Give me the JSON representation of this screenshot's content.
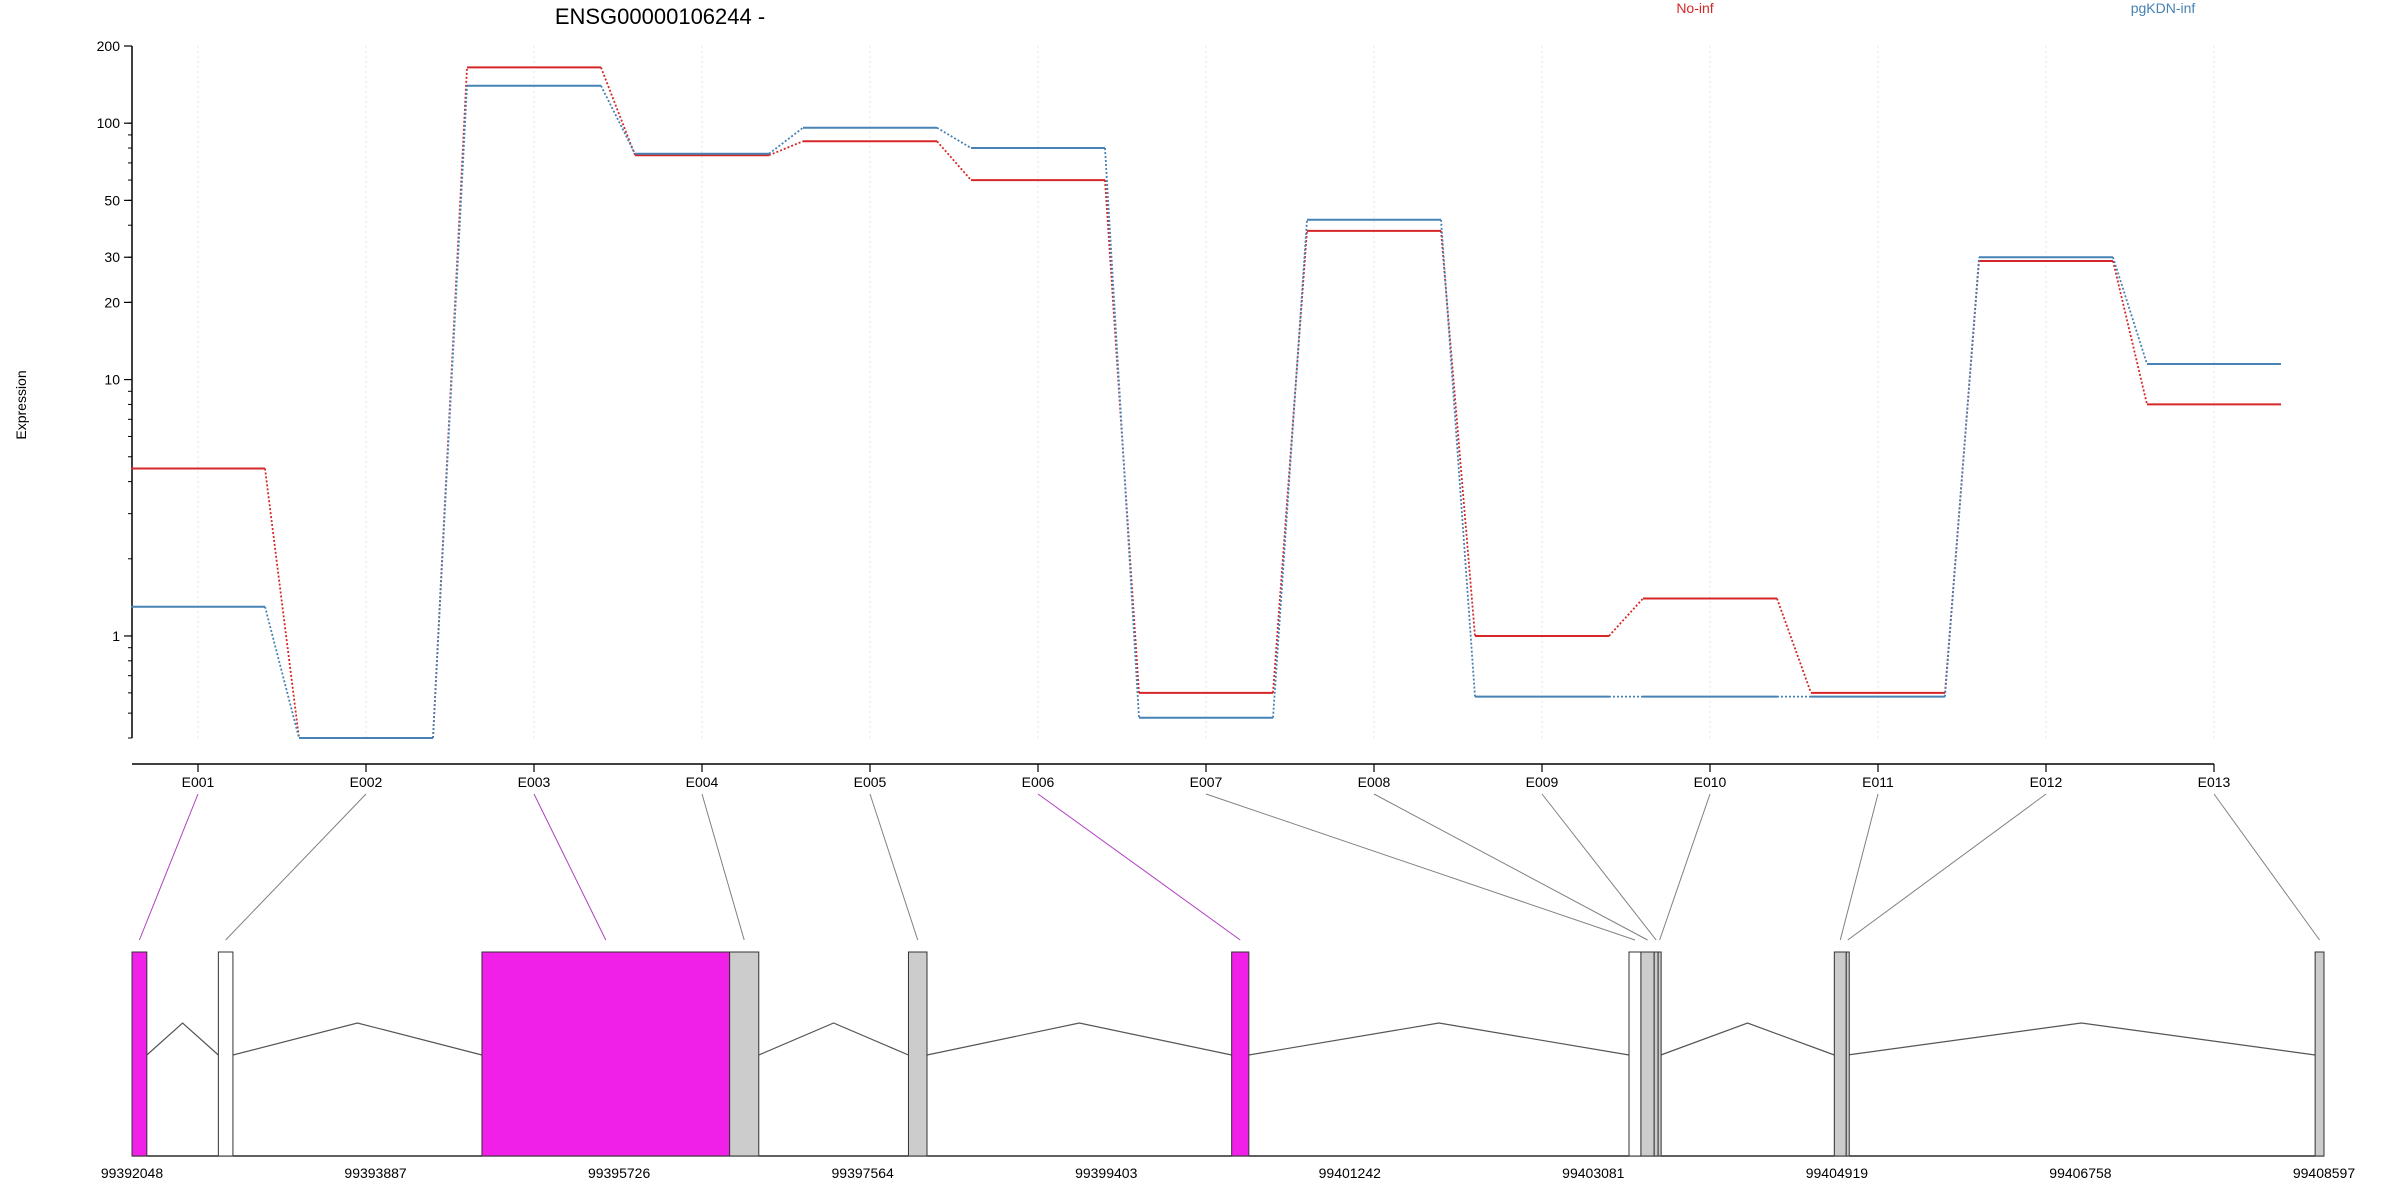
{
  "chart_data": {
    "type": "line",
    "title": "ENSG00000106244 -",
    "ylabel": "Expression",
    "xlabel": "",
    "y_scale": "log",
    "ylim": [
      0.4,
      200
    ],
    "y_ticks": [
      "200",
      "100",
      "50",
      "30",
      "20",
      "10",
      "1"
    ],
    "grid": "vertical dotted lines at exon bins",
    "legend_position": "top-right",
    "categories": [
      "E001",
      "E002",
      "E003",
      "E004",
      "E005",
      "E006",
      "E007",
      "E008",
      "E009",
      "E010",
      "E011",
      "E012",
      "E013"
    ],
    "series": [
      {
        "name": "No-inf",
        "color": "#d62728",
        "values": [
          4.5,
          0.4,
          165,
          75,
          85,
          60,
          0.6,
          38,
          1.0,
          1.4,
          0.6,
          29,
          8.0
        ]
      },
      {
        "name": "pgKDN-inf",
        "color": "#4682b4",
        "values": [
          1.3,
          0.4,
          140,
          76,
          96,
          80,
          0.48,
          42,
          0.58,
          0.58,
          0.58,
          30,
          11.5
        ]
      }
    ],
    "gene_model": {
      "coordinate_labels": [
        "99392048",
        "99393887",
        "99395726",
        "99397564",
        "99399403",
        "99401242",
        "99403081",
        "99404919",
        "99406758",
        "99408597"
      ],
      "genomic_range": [
        99392048,
        99408597
      ],
      "exons": [
        {
          "bin": "E001",
          "start": 99392048,
          "end": 99392160,
          "fill": "#f020e8"
        },
        {
          "bin": "E002",
          "start": 99392700,
          "end": 99392810,
          "fill": "#ffffff"
        },
        {
          "bin": "E003",
          "start": 99394690,
          "end": 99396560,
          "fill": "#f020e8"
        },
        {
          "bin": "E004",
          "start": 99396560,
          "end": 99396780,
          "fill": "#cccccc"
        },
        {
          "bin": "E005",
          "start": 99397910,
          "end": 99398050,
          "fill": "#cccccc"
        },
        {
          "bin": "E006",
          "start": 99400350,
          "end": 99400480,
          "fill": "#f020e8"
        },
        {
          "bin": "E007",
          "start": 99403350,
          "end": 99403440,
          "fill": "#ffffff"
        },
        {
          "bin": "E008",
          "start": 99403440,
          "end": 99403540,
          "fill": "#cccccc"
        },
        {
          "bin": "E009",
          "start": 99403540,
          "end": 99403570,
          "fill": "#cccccc"
        },
        {
          "bin": "E010",
          "start": 99403570,
          "end": 99403590,
          "fill": "#cccccc"
        },
        {
          "bin": "E011",
          "start": 99404900,
          "end": 99404990,
          "fill": "#cccccc"
        },
        {
          "bin": "E012",
          "start": 99404990,
          "end": 99405000,
          "fill": "#cccccc"
        },
        {
          "bin": "E013",
          "start": 99408530,
          "end": 99408597,
          "fill": "#cccccc"
        }
      ],
      "highlight_color": "#b040c0",
      "link_color": "#808080"
    }
  }
}
